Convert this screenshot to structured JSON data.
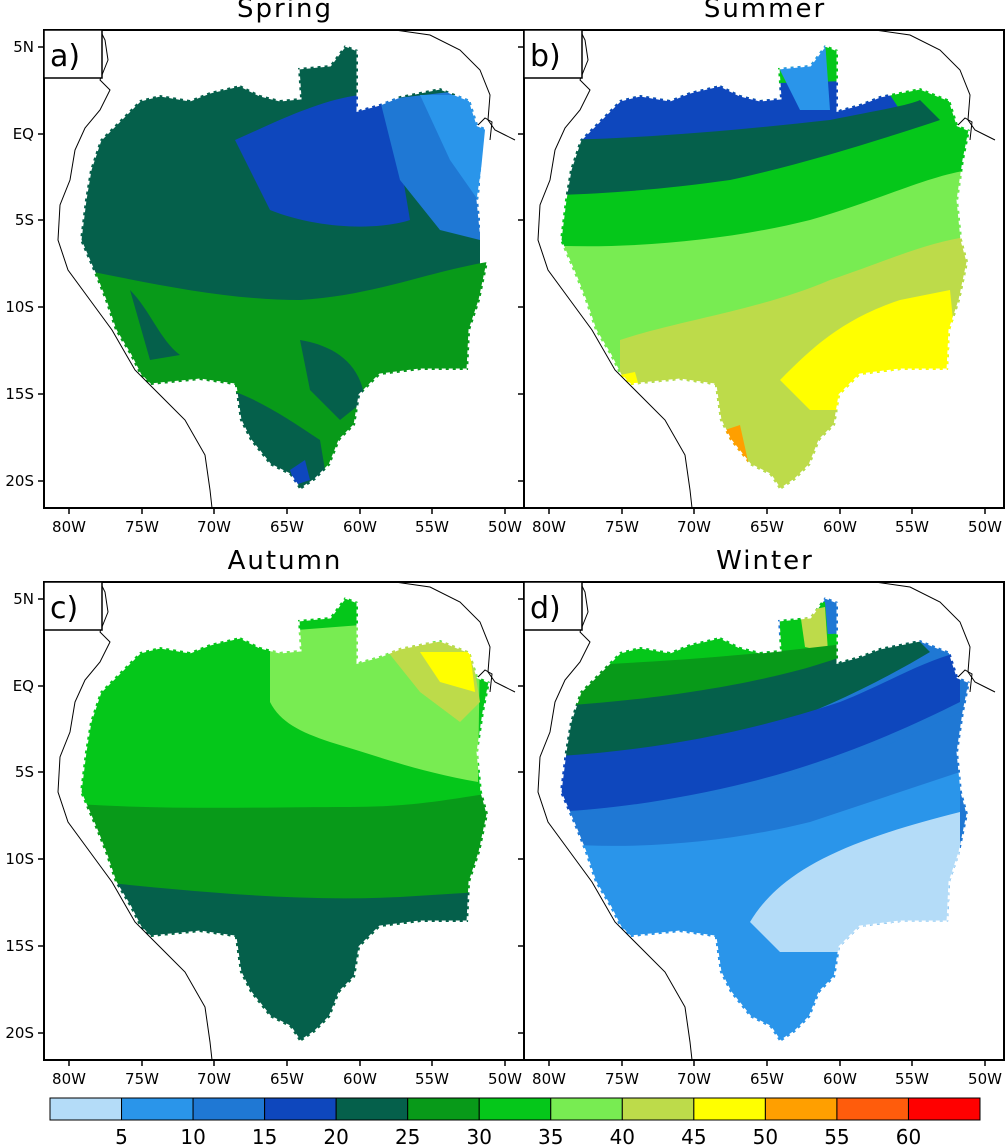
{
  "panels": [
    {
      "id": "a",
      "letter": "a)",
      "title": "Spring"
    },
    {
      "id": "b",
      "letter": "b)",
      "title": "Summer"
    },
    {
      "id": "c",
      "letter": "c)",
      "title": "Autumn"
    },
    {
      "id": "d",
      "letter": "d)",
      "title": "Winter"
    }
  ],
  "axes": {
    "lon_labels": [
      "80W",
      "75W",
      "70W",
      "65W",
      "60W",
      "55W",
      "50W"
    ],
    "lat_labels": [
      "5N",
      "EQ",
      "5S",
      "10S",
      "15S",
      "20S"
    ]
  },
  "colorbar": {
    "labels": [
      "5",
      "10",
      "15",
      "20",
      "25",
      "30",
      "35",
      "40",
      "45",
      "50",
      "55",
      "60"
    ],
    "colors": [
      "#b4dcf8",
      "#2a95ea",
      "#1f78d4",
      "#0e47bd",
      "#05604b",
      "#089a19",
      "#05c71a",
      "#78ec52",
      "#bddb4a",
      "#ffff00",
      "#ff9f00",
      "#ff5c0c",
      "#ff0000"
    ]
  }
}
